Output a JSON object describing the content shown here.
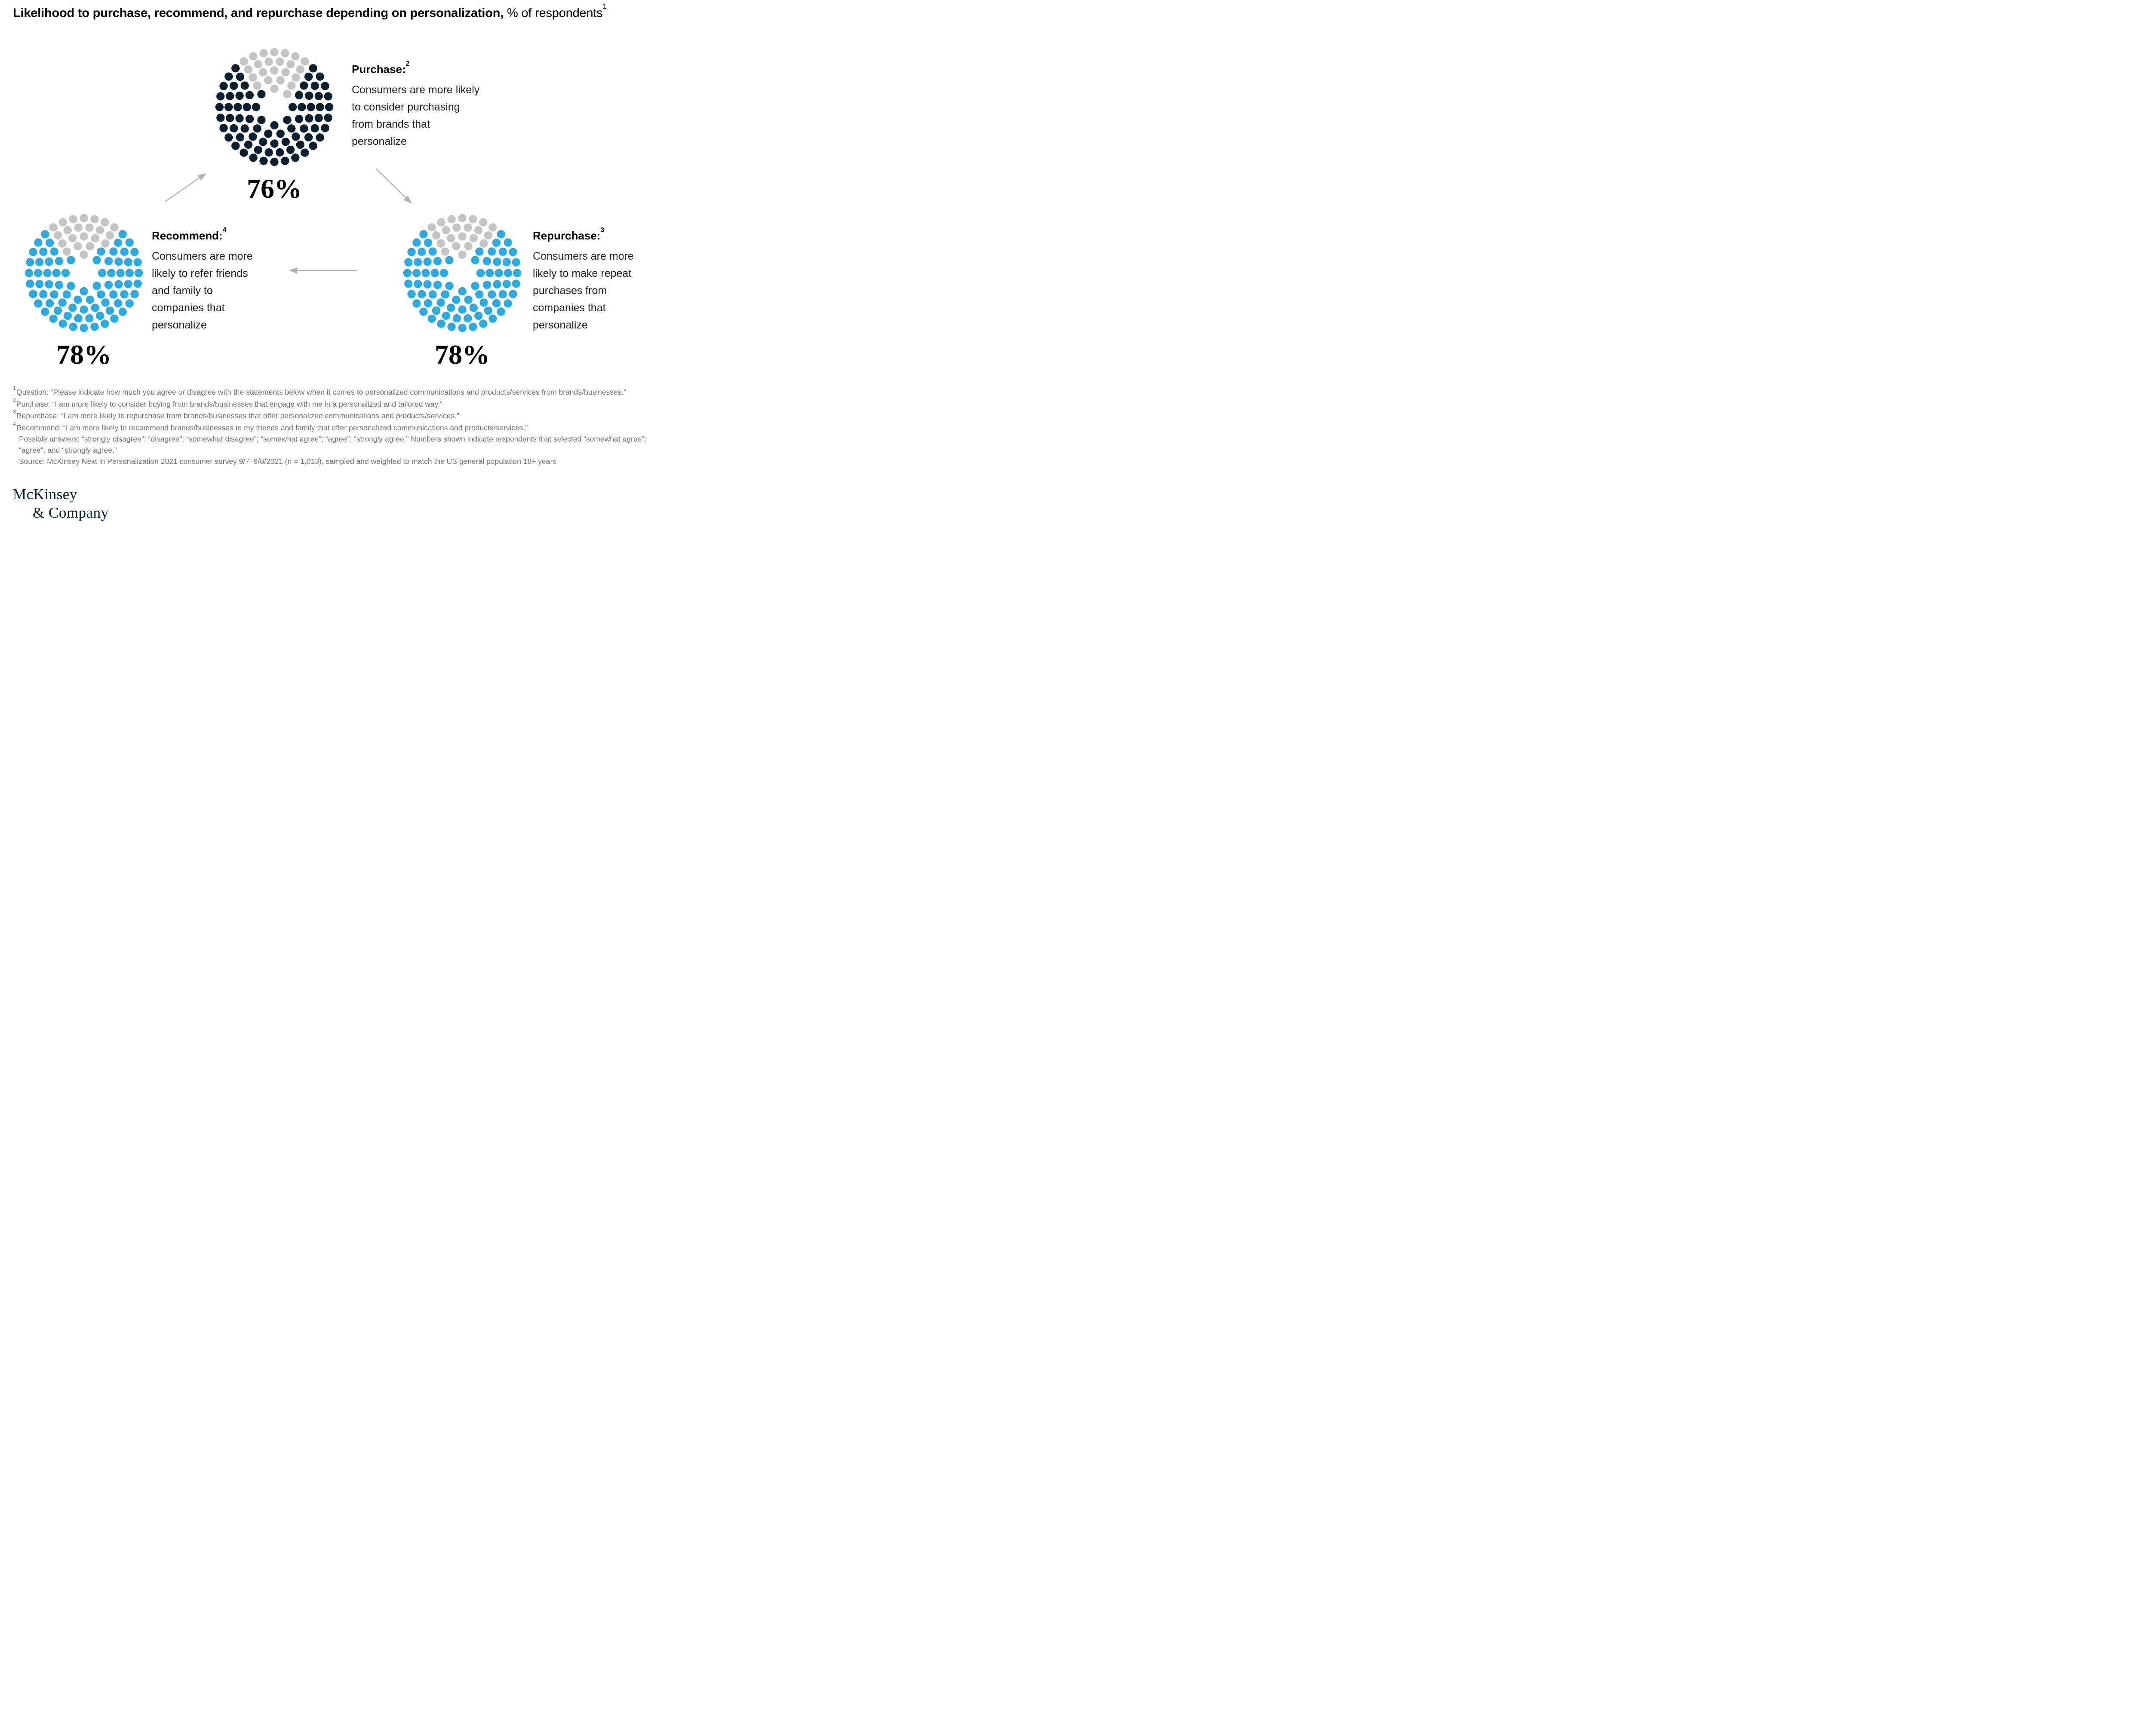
{
  "title": {
    "main": "Likelihood to purchase, recommend, and repurchase depending on personalization,",
    "suffix": " % of respondents",
    "footnote_ref": "1"
  },
  "chart_data": {
    "type": "pictogram-donut",
    "title": "Likelihood to purchase, recommend, and repurchase depending on personalization",
    "unit": "% of respondents",
    "total_dots_per_chart": 100,
    "categories": [
      "Purchase",
      "Recommend",
      "Repurchase"
    ],
    "values": [
      76,
      78,
      78
    ],
    "layout": "three donut dot-clusters connected in a cycle by gray arrows",
    "series": [
      {
        "id": "purchase",
        "heading": "Purchase:",
        "footnote_ref": "2",
        "value": 76,
        "value_label": "76%",
        "dot_color": "#0b1f2e",
        "remainder_color": "#c4c4c4",
        "description": "Consumers are more likely to consider purchasing from brands that personalize"
      },
      {
        "id": "recommend",
        "heading": "Recommend:",
        "footnote_ref": "4",
        "value": 78,
        "value_label": "78%",
        "dot_color": "#2ba9e1",
        "remainder_color": "#c4c4c4",
        "description": "Consumers are more likely to refer friends and family to companies that personalize"
      },
      {
        "id": "repurchase",
        "heading": "Repurchase:",
        "footnote_ref": "3",
        "value": 78,
        "value_label": "78%",
        "dot_color": "#2ba9e1",
        "remainder_color": "#c4c4c4",
        "description": "Consumers are more likely to make repeat purchases from companies that personalize"
      }
    ]
  },
  "footnotes": [
    {
      "marker": "1",
      "text": "Question: “Please indicate how much you agree or disagree with the statements below when it comes to personalized communications and products/services from brands/businesses.”"
    },
    {
      "marker": "2",
      "text": "Purchase: “I am more likely to consider buying from brands/businesses that engage with me in a personalized and tailored way.”"
    },
    {
      "marker": "3",
      "text": "Repurchase: “I am more likely to repurchase from brands/businesses that offer personalized communications and products/services.”"
    },
    {
      "marker": "4",
      "text": "Recommend: “I am more likely to recommend brands/businesses to my friends and family that offer personalized communications and products/services.”"
    },
    {
      "marker": "",
      "text": "Possible answers: “strongly disagree”; “disagree”; “somewhat disagree”; “somewhat agree”; “agree”; “strongly agree.” Numbers shown indicate respondents that selected “somewhat agree”; “agree”; and “strongly agree.”"
    },
    {
      "marker": "",
      "text": "Source: McKinsey Next in Personalization 2021 consumer survey 9/7–9/8/2021 (n = 1,013), sampled and weighted to match the US general population 18+ years"
    }
  ],
  "logo": {
    "line1": "McKinsey",
    "line2": "& Company"
  },
  "colors": {
    "dark_navy": "#0b1f2e",
    "accent_blue": "#2ba9e1",
    "dot_gray": "#c4c4c4",
    "arrow_gray": "#b3b3b3",
    "footnote_gray": "#757575"
  }
}
